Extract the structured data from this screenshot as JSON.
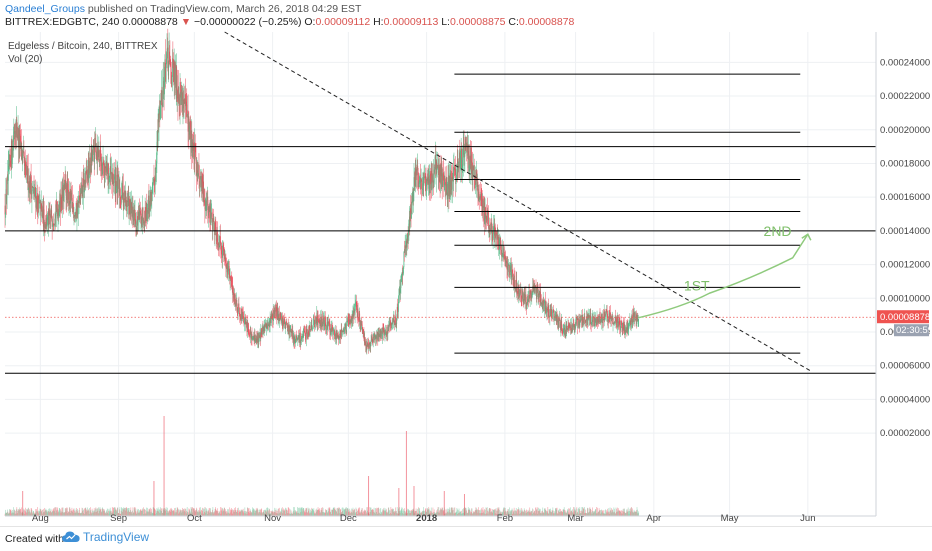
{
  "header": {
    "user": "Qandeel_Groups",
    "published_text": " published on TradingView.com, March 26, 2018 04:29 EST",
    "symbol": "BITTREX:EDGBTC, 240",
    "last": "0.00008878",
    "change_arrow": "▼",
    "change": "−0.00000022 (−0.25%)",
    "o_label": "O:",
    "o_val": "0.00009112",
    "h_label": "H:",
    "h_val": "0.00009113",
    "l_label": "L:",
    "l_val": "0.00008875",
    "c_label": "C:",
    "c_val": "0.00008878"
  },
  "legend": {
    "title": "Edgeless / Bitcoin, 240, BITTREX",
    "volume": "Vol (20)"
  },
  "footer": {
    "made_with": "Created with",
    "brand": "TradingView",
    "brand_icon": "tradingview-cloud-icon"
  },
  "colors": {
    "up": "#53b987",
    "down": "#eb4d5c",
    "line": "#000000",
    "arrow": "#8fca7d",
    "price_tag": "#ef5350",
    "timer_tag": "#9aa2b1",
    "grid": "#eef0f3"
  },
  "chart_data": {
    "type": "candlestick",
    "y_axis": {
      "labels": [
        "0.00024000",
        "0.00022000",
        "0.00020000",
        "0.00018000",
        "0.00016000",
        "0.00014000",
        "0.00012000",
        "0.00010000",
        "0.00008000",
        "0.00006000",
        "0.00004000",
        "0.00002000"
      ],
      "values": [
        0.00024,
        0.00022,
        0.0002,
        0.00018,
        0.00016,
        0.00014,
        0.00012,
        0.0001,
        8e-05,
        6e-05,
        4e-05,
        2e-05
      ],
      "range": [
        1e-05,
        0.000258
      ]
    },
    "x_axis": {
      "labels": [
        "Aug",
        "Sep",
        "Oct",
        "Nov",
        "Dec",
        "2018",
        "Feb",
        "Mar",
        "Apr",
        "May",
        "Jun"
      ],
      "range": [
        "2017-07-18",
        "2018-06-28"
      ]
    },
    "current_price": {
      "label": "0.00008878",
      "value": 8.878e-05
    },
    "countdown": {
      "label": "02:30:59"
    },
    "price_path": [
      [
        "2017-07-18",
        0.000155
      ],
      [
        "2017-07-22",
        0.000205
      ],
      [
        "2017-07-26",
        0.000175
      ],
      [
        "2017-07-30",
        0.00016
      ],
      [
        "2017-08-03",
        0.000145
      ],
      [
        "2017-08-07",
        0.00015
      ],
      [
        "2017-08-11",
        0.000165
      ],
      [
        "2017-08-15",
        0.00015
      ],
      [
        "2017-08-19",
        0.00017
      ],
      [
        "2017-08-23",
        0.00019
      ],
      [
        "2017-08-27",
        0.000175
      ],
      [
        "2017-08-31",
        0.000168
      ],
      [
        "2017-09-04",
        0.000158
      ],
      [
        "2017-09-08",
        0.000145
      ],
      [
        "2017-09-12",
        0.000152
      ],
      [
        "2017-09-15",
        0.000165
      ],
      [
        "2017-09-17",
        0.00021
      ],
      [
        "2017-09-20",
        0.00024
      ],
      [
        "2017-09-23",
        0.000232
      ],
      [
        "2017-09-27",
        0.000215
      ],
      [
        "2017-10-01",
        0.000185
      ],
      [
        "2017-10-05",
        0.00016
      ],
      [
        "2017-10-09",
        0.000142
      ],
      [
        "2017-10-13",
        0.000125
      ],
      [
        "2017-10-17",
        0.0001
      ],
      [
        "2017-10-21",
        8.5e-05
      ],
      [
        "2017-10-25",
        7.5e-05
      ],
      [
        "2017-10-29",
        8.2e-05
      ],
      [
        "2017-11-02",
        9.2e-05
      ],
      [
        "2017-11-06",
        8.5e-05
      ],
      [
        "2017-11-10",
        7.5e-05
      ],
      [
        "2017-11-14",
        7.8e-05
      ],
      [
        "2017-11-18",
        8.8e-05
      ],
      [
        "2017-11-22",
        8.5e-05
      ],
      [
        "2017-11-26",
        7.8e-05
      ],
      [
        "2017-11-30",
        8.2e-05
      ],
      [
        "2017-12-04",
        9.5e-05
      ],
      [
        "2017-12-08",
        7.2e-05
      ],
      [
        "2017-12-12",
        7.8e-05
      ],
      [
        "2017-12-16",
        8e-05
      ],
      [
        "2017-12-20",
        8.8e-05
      ],
      [
        "2017-12-24",
        0.000135
      ],
      [
        "2017-12-28",
        0.000175
      ],
      [
        "2018-01-01",
        0.000165
      ],
      [
        "2018-01-05",
        0.00018
      ],
      [
        "2018-01-09",
        0.000165
      ],
      [
        "2018-01-13",
        0.000175
      ],
      [
        "2018-01-16",
        0.00019
      ],
      [
        "2018-01-20",
        0.000172
      ],
      [
        "2018-01-24",
        0.00015
      ],
      [
        "2018-01-28",
        0.000138
      ],
      [
        "2018-02-01",
        0.000125
      ],
      [
        "2018-02-05",
        0.000108
      ],
      [
        "2018-02-09",
        9.8e-05
      ],
      [
        "2018-02-13",
        0.000105
      ],
      [
        "2018-02-17",
        9.5e-05
      ],
      [
        "2018-02-21",
        8.8e-05
      ],
      [
        "2018-02-25",
        8e-05
      ],
      [
        "2018-03-01",
        8.5e-05
      ],
      [
        "2018-03-05",
        8.8e-05
      ],
      [
        "2018-03-09",
        8.5e-05
      ],
      [
        "2018-03-13",
        9e-05
      ],
      [
        "2018-03-17",
        8.6e-05
      ],
      [
        "2018-03-21",
        8.2e-05
      ],
      [
        "2018-03-24",
        8.8e-05
      ],
      [
        "2018-03-26",
        8.878e-05
      ]
    ],
    "horizontal_lines": [
      {
        "price": 0.000233,
        "from": "2018-01-12",
        "to": "2018-05-29"
      },
      {
        "price": 0.0001985,
        "from": "2018-01-12",
        "to": "2018-05-29"
      },
      {
        "price": 0.00019,
        "from": "2017-07-18",
        "to": "2018-06-28"
      },
      {
        "price": 0.0001705,
        "from": "2018-01-12",
        "to": "2018-05-29"
      },
      {
        "price": 0.0001515,
        "from": "2018-01-12",
        "to": "2018-05-29"
      },
      {
        "price": 0.00014,
        "from": "2017-07-18",
        "to": "2018-06-28"
      },
      {
        "price": 0.0001315,
        "from": "2018-01-12",
        "to": "2018-05-29"
      },
      {
        "price": 0.0001065,
        "from": "2018-01-12",
        "to": "2018-05-29"
      },
      {
        "price": 6.75e-05,
        "from": "2018-01-12",
        "to": "2018-05-29"
      },
      {
        "price": 5.55e-05,
        "from": "2017-07-18",
        "to": "2018-06-28"
      }
    ],
    "trendline": {
      "from": [
        "2017-10-13",
        0.000258
      ],
      "to": [
        "2018-06-02",
        5.7e-05
      ]
    },
    "annotations": [
      {
        "text": "1ST",
        "date": "2018-04-18",
        "price": 0.0001045
      },
      {
        "text": "2ND",
        "date": "2018-05-20",
        "price": 0.000137
      }
    ],
    "projection_arrow": [
      [
        "2018-03-26",
        8.85e-05
      ],
      [
        "2018-04-12",
        9.45e-05
      ],
      [
        "2018-04-23",
        0.000103
      ],
      [
        "2018-05-10",
        0.000112
      ],
      [
        "2018-05-26",
        0.000124
      ],
      [
        "2018-06-01",
        0.000138
      ]
    ],
    "volume_spikes": [
      {
        "date": "2017-07-25",
        "size": 0.25
      },
      {
        "date": "2017-09-15",
        "size": 0.35
      },
      {
        "date": "2017-09-19",
        "size": 1.0
      },
      {
        "date": "2017-12-09",
        "size": 0.4
      },
      {
        "date": "2017-12-21",
        "size": 0.28
      },
      {
        "date": "2017-12-24",
        "size": 0.85
      },
      {
        "date": "2017-12-27",
        "size": 0.3
      },
      {
        "date": "2018-01-08",
        "size": 0.25
      },
      {
        "date": "2018-01-16",
        "size": 0.22
      }
    ],
    "grid": true
  }
}
